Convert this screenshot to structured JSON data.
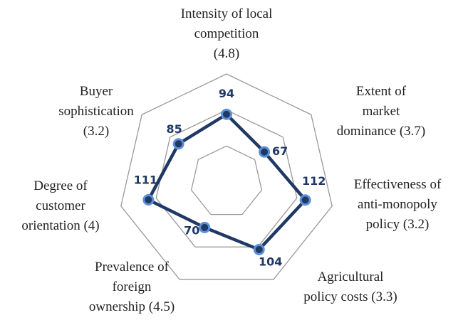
{
  "chart_data": {
    "type": "radar",
    "categories": [
      [
        "Intensity of local",
        "competition",
        "(4.8)"
      ],
      [
        "Extent of",
        "market",
        "dominance (3.7)"
      ],
      [
        "Effectiveness of",
        "anti-monopoly",
        "policy (3.2)"
      ],
      [
        "Agricultural",
        "policy costs (3.3)"
      ],
      [
        "Prevalence of",
        "foreign",
        "ownership (4.5)"
      ],
      [
        "Degree of",
        "customer",
        "orientation (4)"
      ],
      [
        "Buyer",
        "sophistication",
        "(3.2)"
      ]
    ],
    "values": [
      94,
      67,
      112,
      104,
      70,
      111,
      85
    ],
    "color": "#1f3864",
    "marker_color": "#5b8fd6",
    "ylim": [
      0,
      150
    ],
    "yticks": [
      50,
      100,
      150
    ],
    "grid": true
  }
}
